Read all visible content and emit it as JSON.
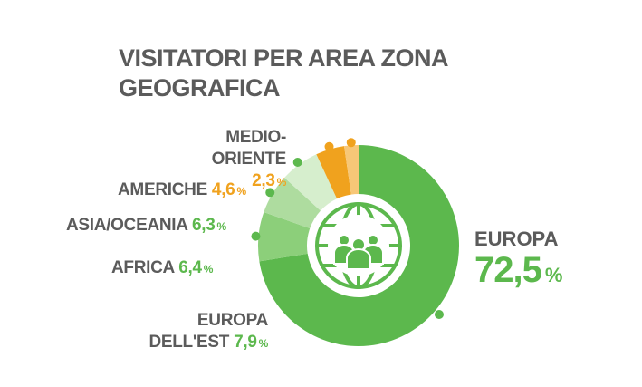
{
  "title_line1": "VISITATORI PER AREA ZONA",
  "title_line2": "GEOGRAFICA",
  "colors": {
    "europa": "#5cb84d",
    "europa_est": "#8ccf7a",
    "africa": "#aedc9f",
    "asia_oceania": "#d6eecd",
    "americhe": "#f0a21e",
    "medio_oriente": "#f7c777",
    "text": "#5b5b5b"
  },
  "labels": {
    "europa": {
      "name": "EUROPA",
      "value": "72,5",
      "unit": "%"
    },
    "europa_est": {
      "name1": "EUROPA",
      "name2": "DELL'EST",
      "value": "7,9",
      "unit": "%"
    },
    "africa": {
      "name": "AFRICA",
      "value": "6,4",
      "unit": "%"
    },
    "asia_oceania": {
      "name": "ASIA/OCEANIA",
      "value": "6,3",
      "unit": "%"
    },
    "americhe": {
      "name": "AMERICHE",
      "value": "4,6",
      "unit": "%"
    },
    "medio_oriente": {
      "name1": "MEDIO-",
      "name2": "ORIENTE",
      "value": "2,3",
      "unit": "%"
    }
  },
  "center_icon": "globe-people-icon",
  "chart_data": {
    "type": "pie",
    "title": "VISITATORI PER AREA ZONA GEOGRAFICA",
    "categories": [
      "EUROPA",
      "EUROPA DELL'EST",
      "AFRICA",
      "ASIA/OCEANIA",
      "AMERICHE",
      "MEDIO-ORIENTE"
    ],
    "values": [
      72.5,
      7.9,
      6.4,
      6.3,
      4.6,
      2.3
    ],
    "unit": "%",
    "donut": true
  }
}
